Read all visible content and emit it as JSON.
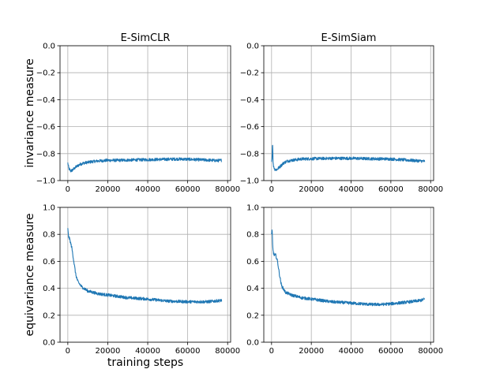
{
  "figure": {
    "xlabel_shared": "training steps"
  },
  "chart_data": [
    {
      "type": "line",
      "title": "E-SimCLR",
      "ylabel": "invariance measure",
      "xlabel": "",
      "xlim": [
        -3900,
        81500
      ],
      "ylim": [
        -1.0,
        0.0
      ],
      "xticks": [
        0,
        20000,
        40000,
        60000,
        80000
      ],
      "xtick_labels": [
        "0",
        "20000",
        "40000",
        "60000",
        "80000"
      ],
      "yticks": [
        -1.0,
        -0.8,
        -0.6,
        -0.4,
        -0.2,
        0.0
      ],
      "ytick_labels": [
        "−1.0",
        "−0.8",
        "−0.6",
        "−0.4",
        "−0.2",
        "0.0"
      ],
      "grid": true,
      "color": "#1f77b4",
      "series": [
        {
          "name": "invariance",
          "x": [
            0,
            500,
            1500,
            2500,
            4000,
            6000,
            8000,
            10000,
            12000,
            15000,
            20000,
            25000,
            30000,
            40000,
            50000,
            55000,
            60000,
            65000,
            70000,
            75000,
            77000
          ],
          "y": [
            -0.87,
            -0.91,
            -0.93,
            -0.92,
            -0.9,
            -0.88,
            -0.87,
            -0.865,
            -0.86,
            -0.855,
            -0.85,
            -0.85,
            -0.848,
            -0.845,
            -0.842,
            -0.84,
            -0.842,
            -0.845,
            -0.848,
            -0.852,
            -0.85
          ]
        }
      ]
    },
    {
      "type": "line",
      "title": "E-SimSiam",
      "ylabel": "",
      "xlabel": "",
      "xlim": [
        -3900,
        81500
      ],
      "ylim": [
        -1.0,
        0.0
      ],
      "xticks": [
        0,
        20000,
        40000,
        60000,
        80000
      ],
      "xtick_labels": [
        "0",
        "20000",
        "40000",
        "60000",
        "80000"
      ],
      "yticks": [
        -1.0,
        -0.8,
        -0.6,
        -0.4,
        -0.2,
        0.0
      ],
      "ytick_labels": [
        "−1.0",
        "−0.8",
        "−0.6",
        "−0.4",
        "−0.2",
        "0.0"
      ],
      "grid": true,
      "color": "#1f77b4",
      "series": [
        {
          "name": "invariance",
          "x": [
            0,
            300,
            500,
            800,
            1500,
            2500,
            4000,
            6000,
            8000,
            10000,
            15000,
            20000,
            30000,
            40000,
            50000,
            60000,
            65000,
            70000,
            75000,
            77000
          ],
          "y": [
            -0.86,
            -0.82,
            -0.7,
            -0.88,
            -0.915,
            -0.92,
            -0.9,
            -0.87,
            -0.855,
            -0.85,
            -0.84,
            -0.838,
            -0.835,
            -0.835,
            -0.838,
            -0.84,
            -0.845,
            -0.85,
            -0.855,
            -0.857
          ]
        }
      ]
    },
    {
      "type": "line",
      "title": "",
      "ylabel": "equivariance measure",
      "xlabel": "training steps",
      "xlim": [
        -3900,
        81500
      ],
      "ylim": [
        0.0,
        1.0
      ],
      "xticks": [
        0,
        20000,
        40000,
        60000,
        80000
      ],
      "xtick_labels": [
        "0",
        "20000",
        "40000",
        "60000",
        "80000"
      ],
      "yticks": [
        0.0,
        0.2,
        0.4,
        0.6,
        0.8,
        1.0
      ],
      "ytick_labels": [
        "0.0",
        "0.2",
        "0.4",
        "0.6",
        "0.8",
        "1.0"
      ],
      "grid": true,
      "color": "#1f77b4",
      "series": [
        {
          "name": "equivariance",
          "x": [
            0,
            300,
            1000,
            2000,
            3000,
            4000,
            5000,
            7000,
            10000,
            15000,
            20000,
            30000,
            40000,
            50000,
            60000,
            70000,
            77000
          ],
          "y": [
            0.84,
            0.79,
            0.76,
            0.7,
            0.6,
            0.5,
            0.45,
            0.41,
            0.38,
            0.36,
            0.35,
            0.33,
            0.32,
            0.305,
            0.3,
            0.3,
            0.31
          ]
        }
      ]
    },
    {
      "type": "line",
      "title": "",
      "ylabel": "",
      "xlabel": "",
      "xlim": [
        -3900,
        81500
      ],
      "ylim": [
        0.0,
        1.0
      ],
      "xticks": [
        0,
        20000,
        40000,
        60000,
        80000
      ],
      "xtick_labels": [
        "0",
        "20000",
        "40000",
        "60000",
        "80000"
      ],
      "yticks": [
        0.0,
        0.2,
        0.4,
        0.6,
        0.8,
        1.0
      ],
      "ytick_labels": [
        "0.0",
        "0.2",
        "0.4",
        "0.6",
        "0.8",
        "1.0"
      ],
      "grid": true,
      "color": "#1f77b4",
      "series": [
        {
          "name": "equivariance",
          "x": [
            0,
            300,
            600,
            1000,
            1500,
            2000,
            3000,
            4000,
            5000,
            7000,
            10000,
            15000,
            20000,
            30000,
            40000,
            50000,
            55000,
            60000,
            70000,
            75000,
            77000
          ],
          "y": [
            0.8,
            0.83,
            0.7,
            0.66,
            0.64,
            0.65,
            0.6,
            0.5,
            0.42,
            0.37,
            0.35,
            0.33,
            0.32,
            0.3,
            0.29,
            0.28,
            0.28,
            0.285,
            0.3,
            0.31,
            0.32
          ]
        }
      ]
    }
  ]
}
